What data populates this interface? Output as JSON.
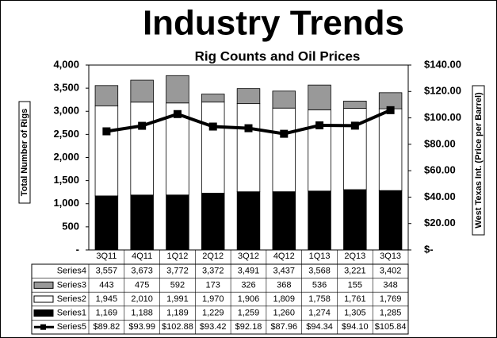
{
  "chart_data": {
    "type": "bar",
    "title": "Industry Trends",
    "subtitle": "Rig Counts and Oil Prices",
    "y_label": "Total Number of Rigs",
    "y2_label": "West Texas Int. (Price per Barrel)",
    "categories": [
      "3Q11",
      "4Q11",
      "1Q12",
      "2Q12",
      "3Q12",
      "4Q12",
      "1Q13",
      "2Q13",
      "3Q13"
    ],
    "series": [
      {
        "name": "Series4",
        "values": [
          3557,
          3673,
          3772,
          3372,
          3491,
          3437,
          3568,
          3221,
          3402
        ],
        "value_labels": [
          "3,557",
          "3,673",
          "3,772",
          "3,372",
          "3,491",
          "3,437",
          "3,568",
          "3,221",
          "3,402"
        ]
      },
      {
        "name": "Series3",
        "color": "#999999",
        "values": [
          443,
          475,
          592,
          173,
          326,
          368,
          536,
          155,
          348
        ],
        "value_labels": [
          "443",
          "475",
          "592",
          "173",
          "326",
          "368",
          "536",
          "155",
          "348"
        ]
      },
      {
        "name": "Series2",
        "color": "#ffffff",
        "values": [
          1945,
          2010,
          1991,
          1970,
          1906,
          1809,
          1758,
          1761,
          1769
        ],
        "value_labels": [
          "1,945",
          "2,010",
          "1,991",
          "1,970",
          "1,906",
          "1,809",
          "1,758",
          "1,761",
          "1,769"
        ]
      },
      {
        "name": "Series1",
        "color": "#000000",
        "values": [
          1169,
          1188,
          1189,
          1229,
          1259,
          1260,
          1274,
          1305,
          1285
        ],
        "value_labels": [
          "1,169",
          "1,188",
          "1,189",
          "1,229",
          "1,259",
          "1,260",
          "1,274",
          "1,305",
          "1,285"
        ]
      },
      {
        "name": "Series5",
        "color": "#000000",
        "axis": "y2",
        "values": [
          89.82,
          93.99,
          102.88,
          93.42,
          92.18,
          87.96,
          94.34,
          94.1,
          105.84
        ],
        "value_labels": [
          "$89.82",
          "$93.99",
          "$102.88",
          "$93.42",
          "$92.18",
          "$87.96",
          "$94.34",
          "$94.10",
          "$105.84"
        ]
      }
    ],
    "ylim": [
      0,
      4000
    ],
    "yticks": [
      {
        "value": 0,
        "label": "-"
      },
      500,
      {
        "value": 1000,
        "label": "1,000"
      },
      {
        "value": 1500,
        "label": "1,500"
      },
      {
        "value": 2000,
        "label": "2,000"
      },
      {
        "value": 2500,
        "label": "2,500"
      },
      {
        "value": 3000,
        "label": "3,000"
      },
      {
        "value": 3500,
        "label": "3,500"
      },
      {
        "value": 4000,
        "label": "4,000"
      }
    ],
    "y2lim": [
      0,
      140
    ],
    "y2ticks": [
      {
        "value": 0,
        "label": "$-"
      },
      {
        "value": 20,
        "label": "$20.00"
      },
      {
        "value": 40,
        "label": "$40.00"
      },
      {
        "value": 60,
        "label": "$60.00"
      },
      {
        "value": 80,
        "label": "$80.00"
      },
      {
        "value": 100,
        "label": "$100.00"
      },
      {
        "value": 120,
        "label": "$120.00"
      },
      {
        "value": 140,
        "label": "$140.00"
      }
    ]
  }
}
